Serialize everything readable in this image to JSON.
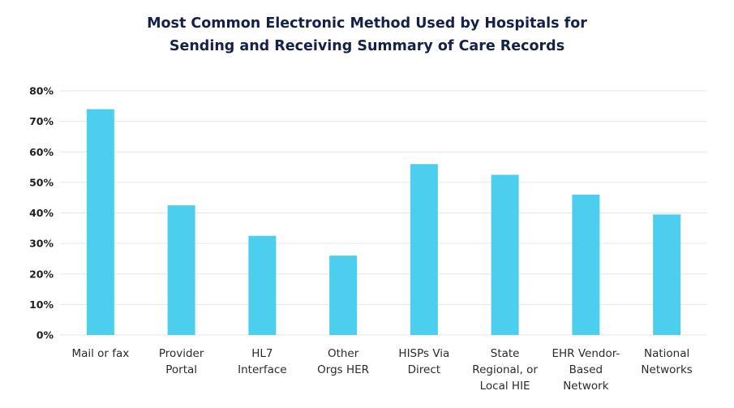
{
  "chart_data": {
    "type": "bar",
    "title_lines": [
      "Most Common Electronic Method Used by Hospitals for",
      "Sending and Receiving Summary of Care Records"
    ],
    "categories": [
      [
        "Mail or fax"
      ],
      [
        "Provider",
        "Portal"
      ],
      [
        "HL7",
        "Interface"
      ],
      [
        "Other",
        "Orgs HER"
      ],
      [
        "HISPs Via",
        "Direct"
      ],
      [
        "State",
        "Regional, or",
        "Local HIE"
      ],
      [
        "EHR Vendor-",
        "Based",
        "Network"
      ],
      [
        "National",
        "Networks"
      ]
    ],
    "values": [
      74,
      42.5,
      32.5,
      26,
      56,
      52.5,
      46,
      39.5
    ],
    "ylim": [
      0,
      80
    ],
    "yticks": [
      0,
      10,
      20,
      30,
      40,
      50,
      60,
      70,
      80
    ],
    "ytick_labels": [
      "0%",
      "10%",
      "20%",
      "30%",
      "40%",
      "50%",
      "60%",
      "70%",
      "80%"
    ],
    "grid": true,
    "bar_color": "#4ccfee",
    "grid_color": "#e6e6e6"
  }
}
